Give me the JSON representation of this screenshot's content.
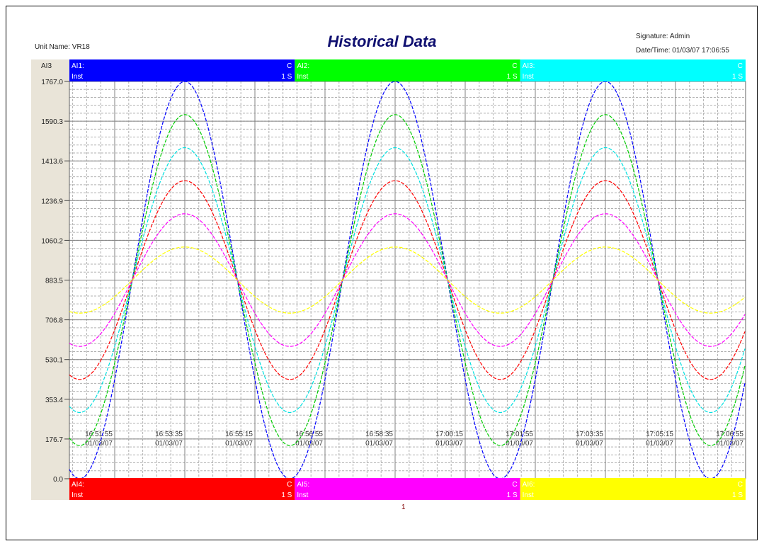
{
  "header": {
    "title": "Historical Data",
    "unit_name": "Unit Name: VR18",
    "signature": "Signature: Admin",
    "datetime": "Date/Time: 01/03/07 17:06:55"
  },
  "footer": {
    "page_number": "1"
  },
  "scale_label": "AI3",
  "channels_top": [
    {
      "name": "AI1:",
      "mode": "Inst",
      "rate": "1 S",
      "corner": "C",
      "color": "#0000ff"
    },
    {
      "name": "AI2:",
      "mode": "Inst",
      "rate": "1 S",
      "corner": "C",
      "color": "#00ff00"
    },
    {
      "name": "AI3:",
      "mode": "Inst",
      "rate": "1 S",
      "corner": "C",
      "color": "#00ffff"
    }
  ],
  "channels_bottom": [
    {
      "name": "AI4:",
      "mode": "Inst",
      "rate": "1 S",
      "corner": "C",
      "color": "#ff0000"
    },
    {
      "name": "AI5:",
      "mode": "Inst",
      "rate": "1 S",
      "corner": "C",
      "color": "#ff00ff"
    },
    {
      "name": "AI6:",
      "mode": "Inst",
      "rate": "1 S",
      "corner": "C",
      "color": "#ffff00"
    }
  ],
  "chart_data": {
    "type": "line",
    "title": "Historical Data",
    "ylim": [
      0.0,
      1767.0
    ],
    "y_ticks": [
      "0.0",
      "176.7",
      "353.4",
      "530.1",
      "706.8",
      "883.5",
      "1060.2",
      "1236.9",
      "1413.6",
      "1590.3",
      "1767.0"
    ],
    "x_ticks": [
      {
        "time": "16:51:55",
        "date": "01/03/07"
      },
      {
        "time": "16:53:35",
        "date": "01/03/07"
      },
      {
        "time": "16:55:15",
        "date": "01/03/07"
      },
      {
        "time": "16:56:55",
        "date": "01/03/07"
      },
      {
        "time": "16:58:35",
        "date": "01/03/07"
      },
      {
        "time": "17:00:15",
        "date": "01/03/07"
      },
      {
        "time": "17:01:55",
        "date": "01/03/07"
      },
      {
        "time": "17:03:35",
        "date": "01/03/07"
      },
      {
        "time": "17:05:15",
        "date": "01/03/07"
      },
      {
        "time": "17:06:55",
        "date": "01/03/07"
      }
    ],
    "grid": true,
    "series": [
      {
        "name": "AI1:",
        "color": "#0000ff",
        "center": 883.5,
        "amplitude": 883.5
      },
      {
        "name": "AI2:",
        "color": "#00cc00",
        "center": 883.5,
        "amplitude": 736
      },
      {
        "name": "AI3:",
        "color": "#00e0e0",
        "center": 883.5,
        "amplitude": 589
      },
      {
        "name": "AI4:",
        "color": "#ff0000",
        "center": 883.5,
        "amplitude": 442
      },
      {
        "name": "AI5:",
        "color": "#ff00ff",
        "center": 883.5,
        "amplitude": 295
      },
      {
        "name": "AI6:",
        "color": "#ffff00",
        "center": 883.5,
        "amplitude": 147
      }
    ],
    "waveform": {
      "shape": "sine",
      "period_seconds": 300,
      "peak_time": "16:53:35"
    }
  }
}
